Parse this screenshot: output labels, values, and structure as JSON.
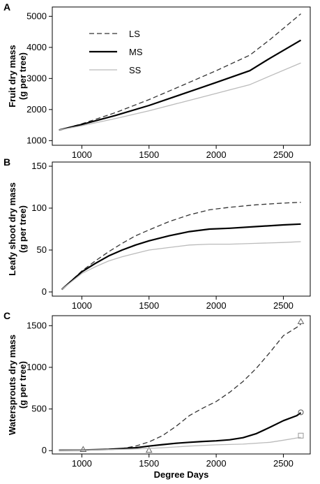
{
  "chart_data": [
    {
      "type": "line",
      "panel_label": "A",
      "ylabel": "Fruit dry mass\n(g per tree)",
      "xlim": [
        780,
        2700
      ],
      "ylim": [
        850,
        5300
      ],
      "x_ticks": [
        1000,
        1500,
        2000,
        2500
      ],
      "y_ticks": [
        1000,
        2000,
        3000,
        4000,
        5000
      ],
      "legend": "top-left",
      "grid": false,
      "series": [
        {
          "name": "LS",
          "color": "#333333",
          "style": "dashed",
          "x": [
            830,
            1000,
            1250,
            1500,
            1750,
            2000,
            2250,
            2400,
            2630
          ],
          "y": [
            1340,
            1540,
            1900,
            2320,
            2780,
            3250,
            3750,
            4250,
            5080
          ]
        },
        {
          "name": "MS",
          "color": "#000000",
          "style": "solid",
          "x": [
            830,
            1000,
            1250,
            1500,
            1750,
            2000,
            2250,
            2400,
            2630
          ],
          "y": [
            1340,
            1520,
            1810,
            2130,
            2500,
            2870,
            3250,
            3650,
            4230
          ]
        },
        {
          "name": "SS",
          "color": "#bbbbbb",
          "style": "solid",
          "x": [
            830,
            1000,
            1250,
            1500,
            1750,
            2000,
            2250,
            2400,
            2630
          ],
          "y": [
            1340,
            1480,
            1710,
            1960,
            2240,
            2520,
            2800,
            3080,
            3500
          ]
        }
      ]
    },
    {
      "type": "line",
      "panel_label": "B",
      "ylabel": "Leafy shoot dry mass\n(g per tree)",
      "xlim": [
        780,
        2700
      ],
      "ylim": [
        -5,
        155
      ],
      "x_ticks": [
        1000,
        1500,
        2000,
        2500
      ],
      "y_ticks": [
        0,
        50,
        100,
        150
      ],
      "grid": false,
      "series": [
        {
          "name": "LS",
          "color": "#333333",
          "style": "dashed",
          "x": [
            850,
            1000,
            1100,
            1200,
            1300,
            1400,
            1500,
            1650,
            1800,
            1950,
            2100,
            2300,
            2500,
            2630
          ],
          "y": [
            3,
            25,
            37,
            48,
            58,
            67,
            74,
            84,
            92,
            98,
            101,
            104,
            106,
            107
          ]
        },
        {
          "name": "MS",
          "color": "#000000",
          "style": "solid",
          "x": [
            850,
            1000,
            1100,
            1200,
            1300,
            1400,
            1500,
            1650,
            1800,
            1950,
            2100,
            2300,
            2500,
            2630
          ],
          "y": [
            3,
            24,
            34,
            43,
            50,
            56,
            61,
            67,
            72,
            75,
            76,
            78,
            80,
            81
          ]
        },
        {
          "name": "SS",
          "color": "#bbbbbb",
          "style": "solid",
          "x": [
            850,
            1000,
            1100,
            1200,
            1300,
            1400,
            1500,
            1650,
            1800,
            1950,
            2100,
            2300,
            2500,
            2630
          ],
          "y": [
            3,
            22,
            30,
            37,
            42,
            46,
            50,
            53,
            56,
            57,
            57,
            58,
            59,
            60
          ]
        }
      ]
    },
    {
      "type": "line",
      "panel_label": "C",
      "ylabel": "Waterssprouts dry mass\n(g per tree)",
      "xlabel": "Degree Days",
      "xlim": [
        780,
        2700
      ],
      "ylim": [
        -40,
        1620
      ],
      "x_ticks": [
        1000,
        1500,
        2000,
        2500
      ],
      "y_ticks": [
        0,
        500,
        1000,
        1500
      ],
      "grid": false,
      "series": [
        {
          "name": "LS",
          "color": "#333333",
          "style": "dashed",
          "marker": "triangle",
          "x": [
            830,
            1000,
            1200,
            1300,
            1400,
            1500,
            1600,
            1700,
            1800,
            1900,
            2000,
            2100,
            2200,
            2300,
            2400,
            2500,
            2600,
            2630
          ],
          "y": [
            5,
            8,
            15,
            25,
            55,
            105,
            180,
            290,
            420,
            510,
            590,
            700,
            830,
            990,
            1180,
            1380,
            1480,
            1520
          ],
          "markers_x": [
            1010,
            1500,
            2630
          ],
          "markers_y": [
            15,
            5,
            1550
          ]
        },
        {
          "name": "MS",
          "color": "#000000",
          "style": "solid",
          "marker": "circle",
          "x": [
            830,
            1000,
            1200,
            1400,
            1500,
            1600,
            1700,
            1800,
            1900,
            2000,
            2100,
            2200,
            2300,
            2400,
            2500,
            2600,
            2630
          ],
          "y": [
            5,
            8,
            15,
            35,
            55,
            72,
            88,
            100,
            110,
            118,
            130,
            155,
            205,
            280,
            360,
            420,
            455
          ],
          "markers_x": [
            2630
          ],
          "markers_y": [
            460
          ]
        },
        {
          "name": "SS",
          "color": "#bbbbbb",
          "style": "solid",
          "marker": "square",
          "x": [
            830,
            1000,
            1200,
            1400,
            1600,
            1800,
            2000,
            2200,
            2400,
            2500,
            2630
          ],
          "y": [
            5,
            8,
            12,
            20,
            35,
            55,
            70,
            78,
            100,
            125,
            160
          ],
          "markers_x": [
            2630
          ],
          "markers_y": [
            180
          ]
        }
      ]
    }
  ],
  "ylabels": {
    "A": [
      "Fruit dry mass",
      "(g per tree)"
    ],
    "B": [
      "Leafy shoot dry mass",
      "(g per tree)"
    ],
    "C": [
      "Watersprouts dry mass",
      "(g per tree)"
    ]
  },
  "legend": {
    "entries": [
      "LS",
      "MS",
      "SS"
    ]
  }
}
